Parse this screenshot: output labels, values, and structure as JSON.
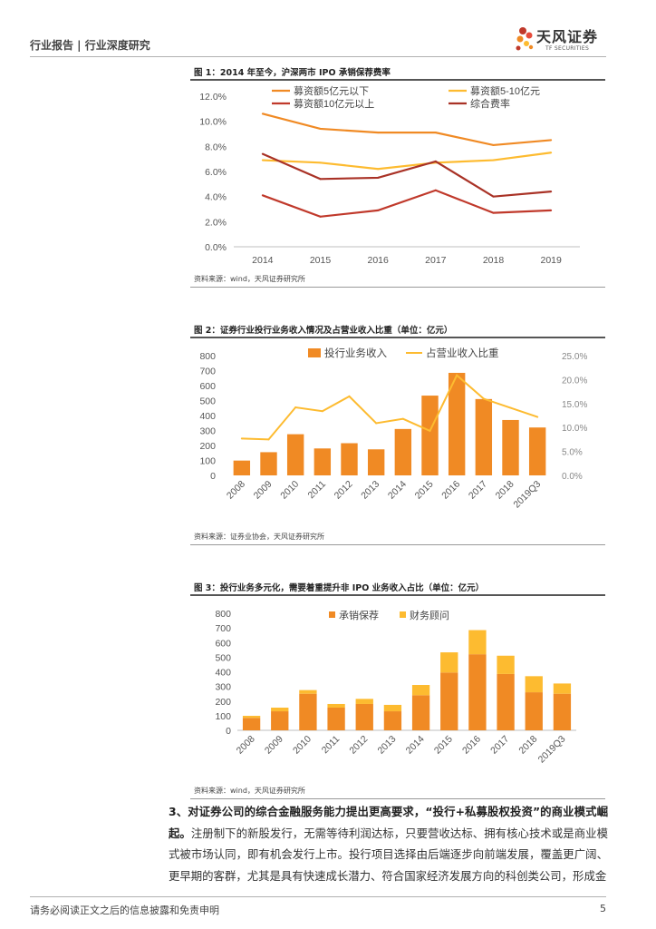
{
  "header": {
    "title": "行业报告 | 行业深度研究",
    "logo_cn": "天风证券",
    "logo_en": "TF SECURITIES"
  },
  "colors": {
    "orange": "#f08a24",
    "yellow": "#fdbb30",
    "dark_red": "#c0392b",
    "rule": "#555555"
  },
  "figures": [
    {
      "title": "图 1：2014 年至今，沪深两市 IPO 承销保荐费率",
      "source": "资料来源：wind，天风证券研究所"
    },
    {
      "title": "图 2：证券行业投行业务收入情况及占营业收入比重（单位：亿元）",
      "source": "资料来源：证券业协会，天风证券研究所"
    },
    {
      "title": "图 3：投行业务多元化，需要着重提升非 IPO 业务收入占比（单位：亿元）",
      "source": "资料来源：wind，天风证券研究所"
    }
  ],
  "chart_data": [
    {
      "type": "line",
      "x": [
        "2014",
        "2015",
        "2016",
        "2017",
        "2018",
        "2019"
      ],
      "ylim": [
        0,
        12
      ],
      "yticks": [
        "0.0%",
        "2.0%",
        "4.0%",
        "6.0%",
        "8.0%",
        "10.0%",
        "12.0%"
      ],
      "series": [
        {
          "name": "募资额5亿元以下",
          "color": "#f08a24",
          "values": [
            10.6,
            9.4,
            9.1,
            9.1,
            8.1,
            8.5
          ]
        },
        {
          "name": "募资额5-10亿元",
          "color": "#fdbb30",
          "values": [
            6.9,
            6.7,
            6.2,
            6.7,
            6.9,
            7.5
          ]
        },
        {
          "name": "募资额10亿元以上",
          "color": "#c0392b",
          "values": [
            4.1,
            2.4,
            2.9,
            4.5,
            2.7,
            2.9
          ]
        },
        {
          "name": "综合费率",
          "color": "#a93226",
          "values": [
            7.4,
            5.4,
            5.5,
            6.8,
            4.0,
            4.4
          ]
        }
      ]
    },
    {
      "type": "bar",
      "categories": [
        "2008",
        "2009",
        "2010",
        "2011",
        "2012",
        "2013",
        "2014",
        "2015",
        "2016",
        "2017",
        "2018",
        "2019Q3"
      ],
      "ylim": [
        0,
        800
      ],
      "yticks": [
        "0",
        "100",
        "200",
        "300",
        "400",
        "500",
        "600",
        "700",
        "800"
      ],
      "y2lim": [
        0,
        25
      ],
      "y2ticks": [
        "0.0%",
        "5.0%",
        "10.0%",
        "15.0%",
        "20.0%",
        "25.0%"
      ],
      "series": [
        {
          "name": "投行业务收入",
          "color": "#f08a24",
          "axis": "left",
          "values": [
            99,
            155,
            275,
            180,
            215,
            174,
            310,
            533,
            685,
            510,
            370,
            320
          ]
        },
        {
          "name": "占营业收入比重",
          "color": "#fdbb30",
          "axis": "right",
          "type": "line",
          "values": [
            7.7,
            7.5,
            14.2,
            13.4,
            16.5,
            10.9,
            11.8,
            9.3,
            20.9,
            16.0,
            14.1,
            12.2
          ]
        }
      ]
    },
    {
      "type": "bar",
      "stacked": true,
      "categories": [
        "2008",
        "2009",
        "2010",
        "2011",
        "2012",
        "2013",
        "2014",
        "2015",
        "2016",
        "2017",
        "2018",
        "2019Q3"
      ],
      "ylim": [
        0,
        800
      ],
      "yticks": [
        "0",
        "100",
        "200",
        "300",
        "400",
        "500",
        "600",
        "700",
        "800"
      ],
      "series": [
        {
          "name": "承销保荐",
          "color": "#f08a24",
          "values": [
            85,
            130,
            250,
            155,
            180,
            130,
            240,
            395,
            520,
            385,
            260,
            250
          ]
        },
        {
          "name": "财务顾问",
          "color": "#fdbb30",
          "values": [
            14,
            25,
            25,
            25,
            35,
            44,
            70,
            138,
            165,
            125,
            110,
            70
          ]
        }
      ]
    }
  ],
  "paragraph": {
    "bold_lead": "3、对证券公司的综合金融服务能力提出更高要求，“投行+私募股权投资”的商业模式崛起。",
    "body": "注册制下的新股发行，无需等待利润达标，只要营收达标、拥有核心技术或是商业模式被市场认同，即有机会发行上市。投行项目选择由后端逐步向前端发展，覆盖更广阔、更早期的客群，尤其是具有快速成长潜力、符合国家经济发展方向的科创类公司，形成金"
  },
  "footer": {
    "disclaimer": "请务必阅读正文之后的信息披露和免责申明",
    "page": "5"
  }
}
